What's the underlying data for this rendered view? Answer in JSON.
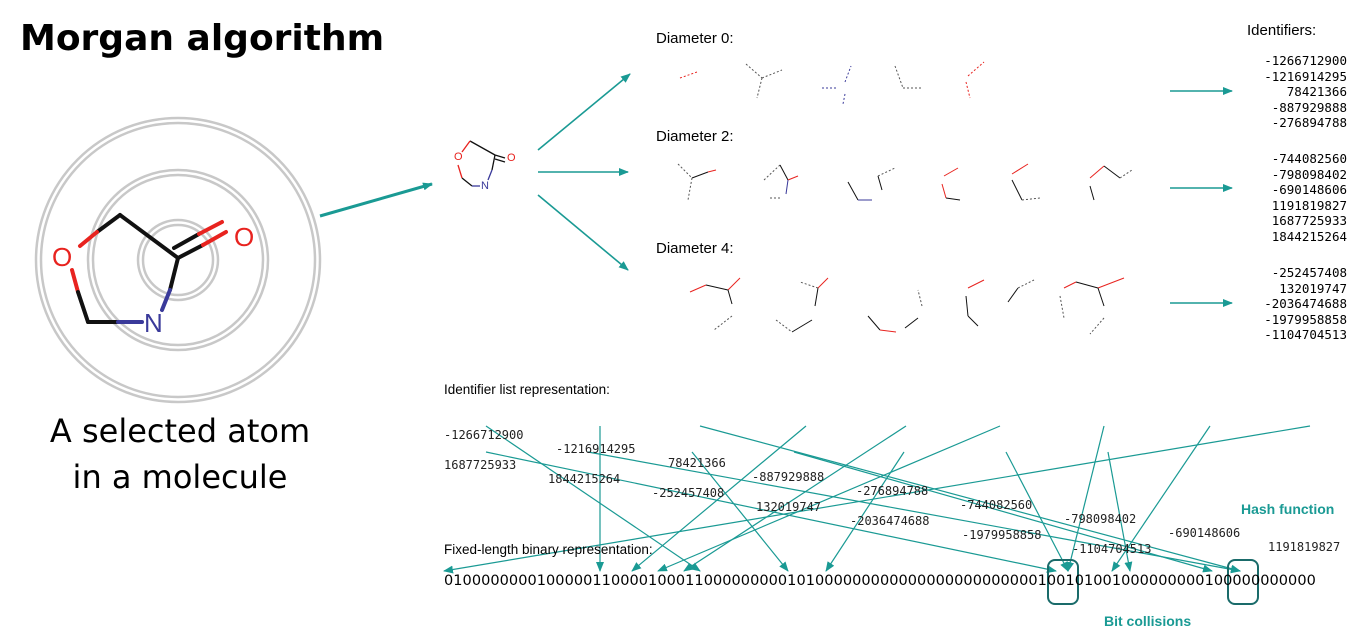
{
  "title": "Morgan algorithm",
  "caption": {
    "line1": "A selected atom",
    "line2": "in a molecule"
  },
  "molecule_atoms": {
    "oxygen": "O",
    "carbonyl_oxygen": "O",
    "nitrogen": "N"
  },
  "diameters": [
    {
      "label": "Diameter 0:",
      "identifiers": [
        "-1266712900",
        "-1216914295",
        "78421366",
        "-887929888",
        "-276894788"
      ]
    },
    {
      "label": "Diameter 2:",
      "identifiers": [
        "-744082560",
        "-798098402",
        "-690148606",
        "1191819827",
        "1687725933",
        "1844215264"
      ]
    },
    {
      "label": "Diameter 4:",
      "identifiers": [
        "-252457408",
        "132019747",
        "-2036474688",
        "-1979958858",
        "-1104704513"
      ]
    }
  ],
  "identifiers_header": "Identifiers:",
  "identifier_list_header": "Identifier list representation:",
  "identifier_row1": [
    "-1266712900",
    "-1216914295",
    "78421366",
    "-887929888",
    "-276894788",
    "-744082560",
    "-798098402",
    "-690148606",
    "1191819827"
  ],
  "identifier_row2": [
    "1687725933",
    "1844215264",
    "-252457408",
    "132019747",
    "-2036474688",
    "-1979958858",
    "-1104704513"
  ],
  "binary_header": "Fixed-length binary representation:",
  "binary_string": "0100000000100000110000100011000000000101000000000000000000000000100101001000000000100000000000",
  "hash_function_label": "Hash function",
  "bit_collisions_label": "Bit collisions",
  "colors": {
    "teal": "#1a9a94",
    "oxygen": "#e8231f",
    "nitrogen": "#3a3a9a",
    "ring": "#c8c8c8"
  }
}
